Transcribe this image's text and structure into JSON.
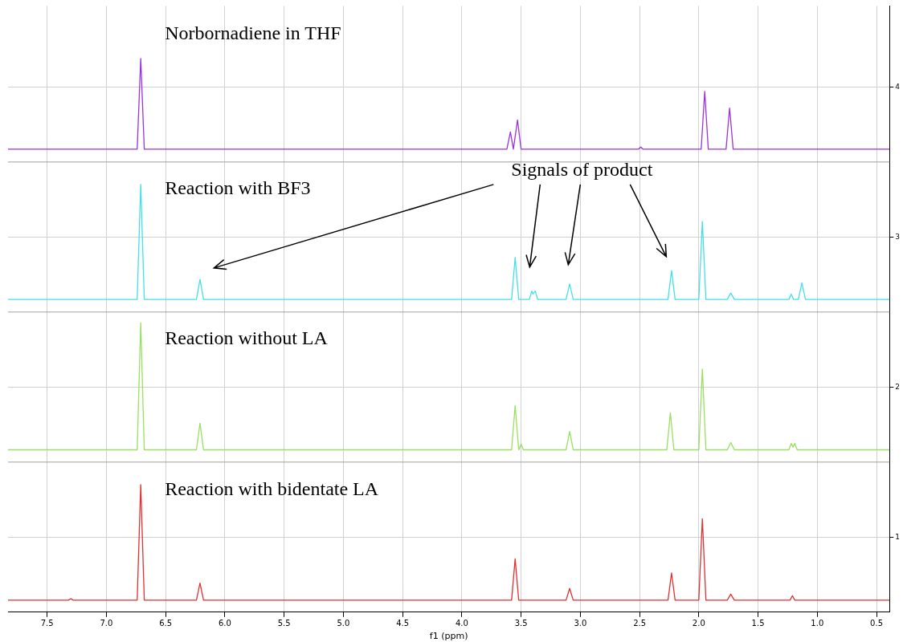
{
  "chart_data": {
    "type": "line",
    "xlabel": "f1 (ppm)",
    "xlim": [
      7.83,
      0.39
    ],
    "xticks": [
      7.5,
      {
        "value": 7,
        "label": "7.0"
      },
      6.5,
      {
        "value": 6,
        "label": "6.0"
      },
      5.5,
      {
        "value": 5,
        "label": "5.0"
      },
      4.5,
      {
        "value": 4,
        "label": "4.0"
      },
      3.5,
      {
        "value": 3,
        "label": "3.0"
      },
      2.5,
      {
        "value": 2,
        "label": "2.0"
      },
      1.5,
      {
        "value": 1,
        "label": "1.0"
      },
      0.5
    ],
    "ylim": [
      0.5,
      4.54
    ],
    "yticks": [
      1,
      2,
      3,
      4
    ],
    "grid": true,
    "legend": false,
    "marker": "none",
    "line_style": "solid",
    "series": [
      {
        "name": "Norbornadiene in THF",
        "color": "#9933dd",
        "x": [
          7.83,
          6.74,
          6.71,
          6.68,
          3.62,
          3.59,
          3.565,
          3.53,
          3.5,
          2.51,
          2.49,
          2.47,
          1.98,
          1.95,
          1.92,
          1.77,
          1.74,
          1.71,
          0.39
        ],
        "values": [
          3.585,
          3.585,
          4.19,
          3.585,
          3.585,
          3.7,
          3.585,
          3.78,
          3.585,
          3.585,
          3.6,
          3.585,
          3.585,
          3.97,
          3.585,
          3.585,
          3.86,
          3.585,
          3.585
        ]
      },
      {
        "name": "Reaction with BF3",
        "color": "#44e0e8",
        "x": [
          7.83,
          6.74,
          6.71,
          6.68,
          6.24,
          6.21,
          6.18,
          3.58,
          3.55,
          3.52,
          3.43,
          3.41,
          3.4,
          3.38,
          3.36,
          3.12,
          3.09,
          3.06,
          2.26,
          2.23,
          2.2,
          2.0,
          1.97,
          1.94,
          1.76,
          1.73,
          1.7,
          1.24,
          1.22,
          1.2,
          1.16,
          1.13,
          1.1,
          0.39
        ],
        "values": [
          2.584,
          2.584,
          3.351,
          2.584,
          2.584,
          2.718,
          2.584,
          2.584,
          2.863,
          2.584,
          2.584,
          2.64,
          2.62,
          2.64,
          2.584,
          2.584,
          2.687,
          2.584,
          2.584,
          2.777,
          2.584,
          2.584,
          3.104,
          2.584,
          2.584,
          2.627,
          2.584,
          2.584,
          2.62,
          2.584,
          2.584,
          2.695,
          2.584,
          2.584
        ]
      },
      {
        "name": "Reaction without LA",
        "color": "#99e060",
        "x": [
          7.83,
          6.74,
          6.71,
          6.68,
          6.24,
          6.21,
          6.18,
          3.58,
          3.55,
          3.52,
          3.5,
          3.48,
          3.12,
          3.09,
          3.06,
          2.27,
          2.24,
          2.21,
          2.0,
          1.97,
          1.94,
          1.76,
          1.73,
          1.7,
          1.24,
          1.22,
          1.205,
          1.19,
          1.17,
          0.39
        ],
        "values": [
          1.582,
          1.582,
          2.427,
          1.582,
          1.582,
          1.759,
          1.582,
          1.582,
          1.877,
          1.582,
          1.62,
          1.582,
          1.582,
          1.704,
          1.582,
          1.582,
          1.829,
          1.582,
          1.582,
          2.12,
          1.582,
          1.582,
          1.63,
          1.582,
          1.582,
          1.625,
          1.6,
          1.625,
          1.582,
          1.582
        ]
      },
      {
        "name": "Reaction with bidentate LA",
        "color": "#e03030",
        "x": [
          7.83,
          7.32,
          7.3,
          7.28,
          6.74,
          6.71,
          6.68,
          6.24,
          6.21,
          6.18,
          3.58,
          3.55,
          3.52,
          3.12,
          3.09,
          3.06,
          2.26,
          2.23,
          2.2,
          2.0,
          1.97,
          1.94,
          1.76,
          1.73,
          1.7,
          1.23,
          1.21,
          1.19,
          1.17,
          0.39
        ],
        "values": [
          0.58,
          0.58,
          0.59,
          0.58,
          0.58,
          1.35,
          0.58,
          0.58,
          0.693,
          0.58,
          0.58,
          0.855,
          0.58,
          0.58,
          0.658,
          0.58,
          0.58,
          0.761,
          0.58,
          0.58,
          1.122,
          0.58,
          0.58,
          0.62,
          0.58,
          0.58,
          0.61,
          0.58,
          0.58,
          0.58
        ]
      }
    ],
    "ref_lines": [
      {
        "axis": "y",
        "value": 3.5,
        "color": "#a0a0a0"
      },
      {
        "axis": "y",
        "value": 2.5,
        "color": "#a0a0a0"
      },
      {
        "axis": "y",
        "value": 1.5,
        "color": "#a0a0a0"
      }
    ],
    "annotations": [
      "Signals of product"
    ]
  }
}
